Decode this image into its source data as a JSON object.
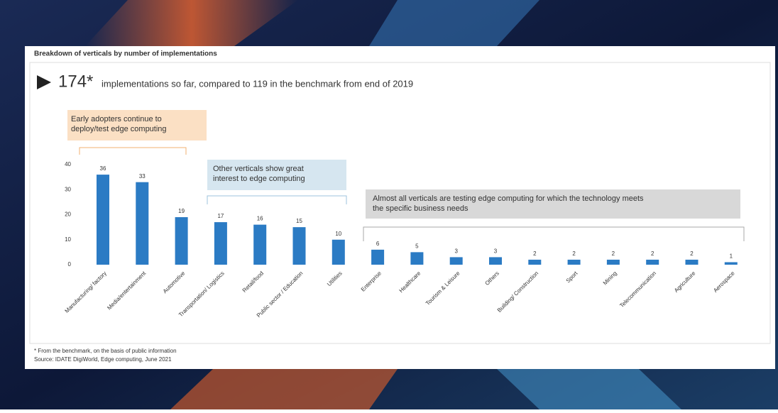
{
  "chart_data": {
    "type": "bar",
    "title": "Breakdown of verticals by number of implementations",
    "headline": {
      "number": "174*",
      "text": "implementations so far, compared to 119 in the benchmark from end of 2019"
    },
    "annotations": [
      "Early adopters continue to deploy/test edge computing",
      "Other verticals show great interest to edge computing",
      "Almost all verticals are testing edge computing for which the technology meets the specific business needs"
    ],
    "footnotes": [
      "* From the benchmark, on the basis of public information",
      "Source: IDATE DigiWorld, Edge computing, June 2021"
    ],
    "categories": [
      "Manufacturing/ factory",
      "Media/entertainment",
      "Automotive",
      "Transportation/ Logistics",
      "Retail/food",
      "Public sector / Education",
      "Utilities",
      "Enterprise",
      "Healthcare",
      "Tourism & Leisure",
      "Others",
      "Building/ Construction",
      "Sport",
      "Mining",
      "Telecommunication",
      "Agriculture",
      "Aerospace"
    ],
    "values": [
      36,
      33,
      19,
      17,
      16,
      15,
      10,
      6,
      5,
      3,
      3,
      2,
      2,
      2,
      2,
      2,
      1
    ],
    "color": "#2b7bc4",
    "ylim": [
      0,
      40
    ],
    "yticks": [
      0,
      10,
      20,
      30,
      40
    ],
    "grid": false
  }
}
